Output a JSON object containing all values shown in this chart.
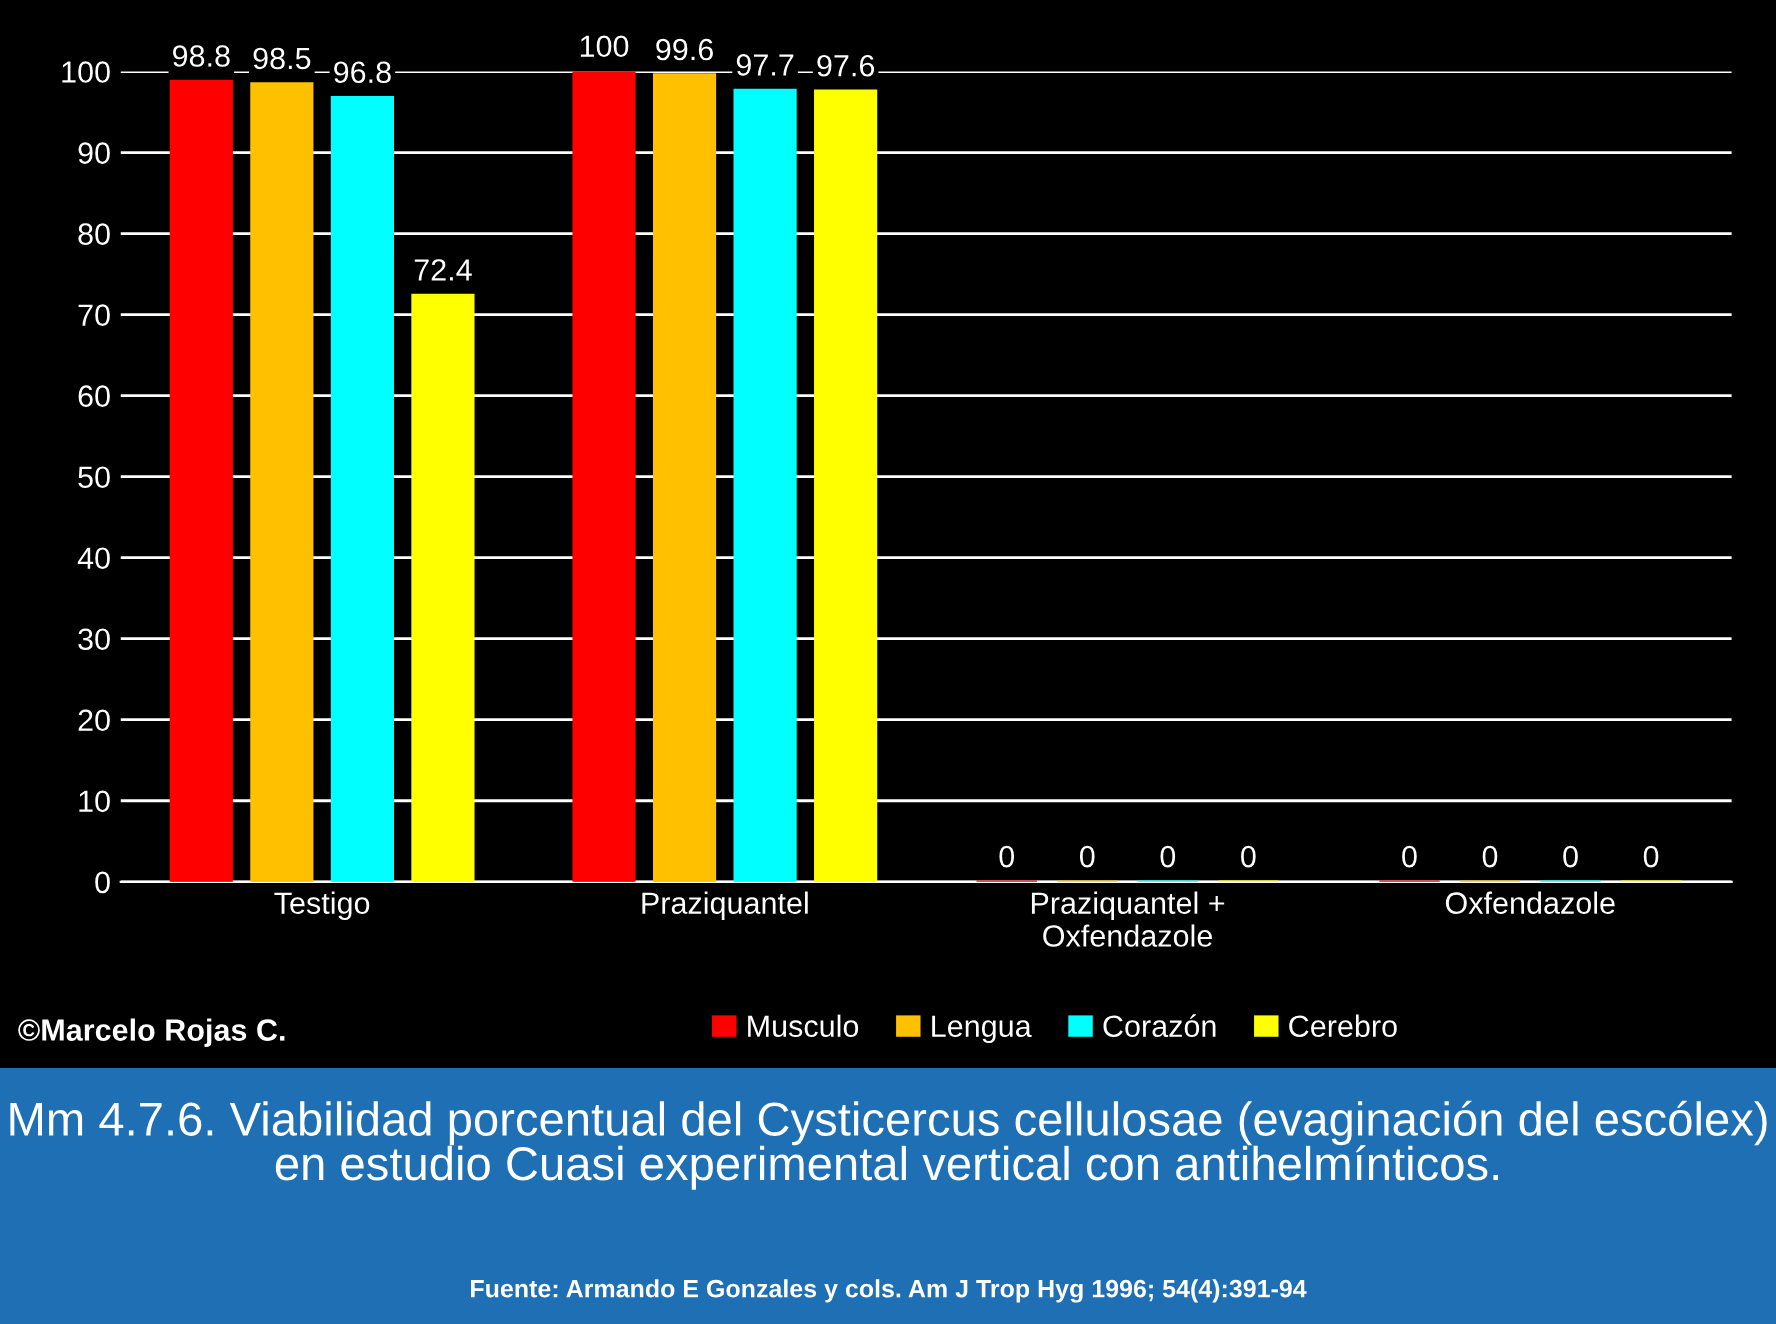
{
  "chart_data": {
    "type": "bar",
    "categories": [
      "Testigo",
      "Praziquantel",
      "Praziquantel +\nOxfendazole",
      "Oxfendazole"
    ],
    "series": [
      {
        "name": "Musculo",
        "color": "#ff0000",
        "values": [
          98.8,
          100,
          0,
          0
        ]
      },
      {
        "name": "Lengua",
        "color": "#ffc000",
        "values": [
          98.5,
          99.6,
          0,
          0
        ]
      },
      {
        "name": "Corazón",
        "color": "#00ffff",
        "values": [
          96.8,
          97.7,
          0,
          0
        ]
      },
      {
        "name": "Cerebro",
        "color": "#ffff00",
        "values": [
          72.4,
          97.6,
          0,
          0
        ]
      }
    ],
    "ylim": [
      0,
      100
    ],
    "yticks": [
      0,
      10,
      20,
      30,
      40,
      50,
      60,
      70,
      80,
      90,
      100
    ],
    "grid": "y",
    "legend": "bottom",
    "data_labels": true,
    "annotations": [
      "©Marcelo Rojas C.",
      "Mm 4.7.6. Viabilidad porcentual del Cysticercus cellulosae (evaginación del escólex) en estudio Cuasi experimental vertical con antihelmínticos.",
      "Fuente: Armando E Gonzales y cols. Am J Trop Hyg 1996; 54(4):391-94"
    ]
  }
}
